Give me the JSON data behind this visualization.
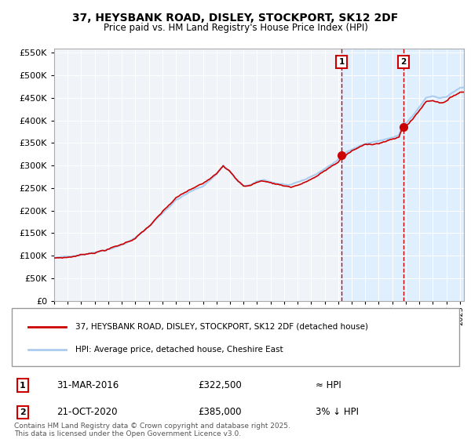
{
  "title_line1": "37, HEYSBANK ROAD, DISLEY, STOCKPORT, SK12 2DF",
  "title_line2": "Price paid vs. HM Land Registry's House Price Index (HPI)",
  "legend_label1": "37, HEYSBANK ROAD, DISLEY, STOCKPORT, SK12 2DF (detached house)",
  "legend_label2": "HPI: Average price, detached house, Cheshire East",
  "event1_num": "1",
  "event1_date": "31-MAR-2016",
  "event1_price": "£322,500",
  "event1_hpi": "≈ HPI",
  "event2_num": "2",
  "event2_date": "21-OCT-2020",
  "event2_price": "£385,000",
  "event2_hpi": "3% ↓ HPI",
  "footnote": "Contains HM Land Registry data © Crown copyright and database right 2025.\nThis data is licensed under the Open Government Licence v3.0.",
  "line_color_red": "#cc0000",
  "line_color_blue": "#aaccee",
  "dot_color": "#cc0000",
  "vline_color": "#cc0000",
  "shade_color": "#ddeeff",
  "bg_color": "#f0f4f8",
  "event1_year": 2016.25,
  "event2_year": 2020.83,
  "event1_price_val": 322500,
  "event2_price_val": 385000,
  "xmin": 1995,
  "xmax": 2025.3,
  "ymin": 0,
  "ymax": 560000
}
